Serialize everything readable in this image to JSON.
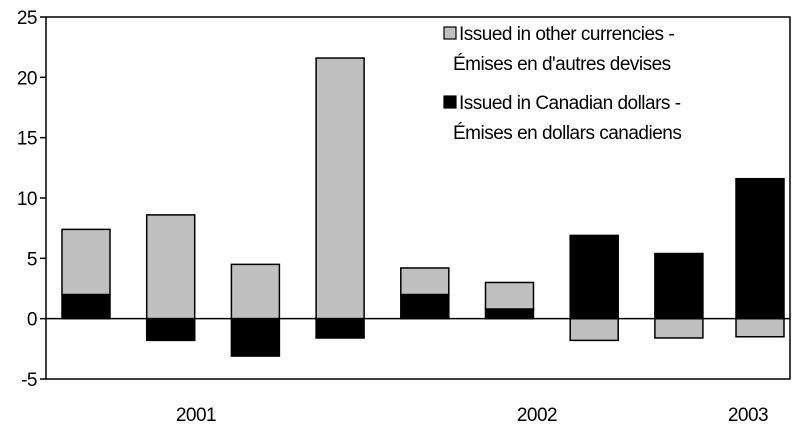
{
  "chart_data": {
    "type": "bar",
    "stacked": true,
    "categories": [
      "",
      "",
      "",
      "",
      "",
      "",
      "",
      ""
    ],
    "x_group_labels": [
      {
        "label": "2001",
        "from_index": 0,
        "to_index": 3
      },
      {
        "label": "2002",
        "from_index": 4,
        "to_index": 7
      },
      {
        "label": "2003",
        "from_index": 7,
        "to_index": 7
      }
    ],
    "series": [
      {
        "name": "Issued in Canadian dollars - Émises en dollars canadiens",
        "legend_lines": [
          "Issued in Canadian dollars -",
          "Émises en dollars canadiens"
        ],
        "color": "#000000",
        "values": [
          2.0,
          -1.8,
          -3.1,
          -1.6,
          2.0,
          0.8,
          0.0,
          0.0
        ]
      },
      {
        "name": "Issued in other currencies - Émises en d'autres devises",
        "legend_lines": [
          "Issued in other currencies -",
          "Émises en d'autres devises"
        ],
        "color": "#c0c0c0",
        "values": [
          5.4,
          8.6,
          4.5,
          21.6,
          2.2,
          2.2,
          -1.8,
          -1.6
        ]
      }
    ],
    "bar_totals_canadian_dominant": [
      null,
      null,
      null,
      null,
      null,
      null,
      6.9,
      5.4
    ],
    "ylim": [
      -5,
      25
    ],
    "yticks": [
      -5,
      0,
      5,
      10,
      15,
      20,
      25
    ],
    "legend_position": "top-right",
    "grid": false,
    "title": "",
    "xlabel": "",
    "ylabel": ""
  }
}
